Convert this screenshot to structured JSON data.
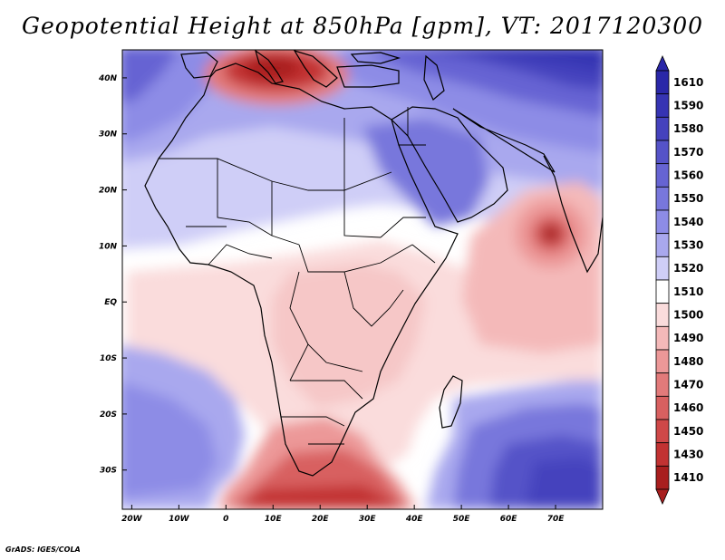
{
  "title": "Geopotential Height at 850hPa [gpm], VT: 2017120300",
  "credit": "GrADS: IGES/COLA",
  "map": {
    "projection": "lat-lon",
    "lon_range": [
      -22,
      80
    ],
    "lat_range": [
      -37,
      45
    ],
    "lon_ticks": [
      {
        "lon": -20,
        "label": "20W"
      },
      {
        "lon": -10,
        "label": "10W"
      },
      {
        "lon": 0,
        "label": "0"
      },
      {
        "lon": 10,
        "label": "10E"
      },
      {
        "lon": 20,
        "label": "20E"
      },
      {
        "lon": 30,
        "label": "30E"
      },
      {
        "lon": 40,
        "label": "40E"
      },
      {
        "lon": 50,
        "label": "50E"
      },
      {
        "lon": 60,
        "label": "60E"
      },
      {
        "lon": 70,
        "label": "70E"
      }
    ],
    "lat_ticks": [
      {
        "lat": 40,
        "label": "40N"
      },
      {
        "lat": 30,
        "label": "30N"
      },
      {
        "lat": 20,
        "label": "20N"
      },
      {
        "lat": 10,
        "label": "10N"
      },
      {
        "lat": 0,
        "label": "EQ"
      },
      {
        "lat": -10,
        "label": "10S"
      },
      {
        "lat": -20,
        "label": "20S"
      },
      {
        "lat": -30,
        "label": "30S"
      }
    ]
  },
  "colorbar": {
    "levels": [
      {
        "label": "1610",
        "color": "#2a27a8"
      },
      {
        "label": "1590",
        "color": "#3634b3"
      },
      {
        "label": "1580",
        "color": "#4542bd"
      },
      {
        "label": "1570",
        "color": "#5553c8"
      },
      {
        "label": "1560",
        "color": "#6664d3"
      },
      {
        "label": "1550",
        "color": "#7877dc"
      },
      {
        "label": "1540",
        "color": "#8d8ce6"
      },
      {
        "label": "1530",
        "color": "#a9a8ee"
      },
      {
        "label": "1520",
        "color": "#cfcef7"
      },
      {
        "label": "1510",
        "color": "#ffffff"
      },
      {
        "label": "1500",
        "color": "#fadcdc"
      },
      {
        "label": "1490",
        "color": "#f4b9b9"
      },
      {
        "label": "1480",
        "color": "#ec9898"
      },
      {
        "label": "1470",
        "color": "#e27a7a"
      },
      {
        "label": "1460",
        "color": "#d86060"
      },
      {
        "label": "1450",
        "color": "#cf4848"
      },
      {
        "label": "1430",
        "color": "#c23232"
      },
      {
        "label": "1410",
        "color": "#a81e1e"
      }
    ]
  }
}
